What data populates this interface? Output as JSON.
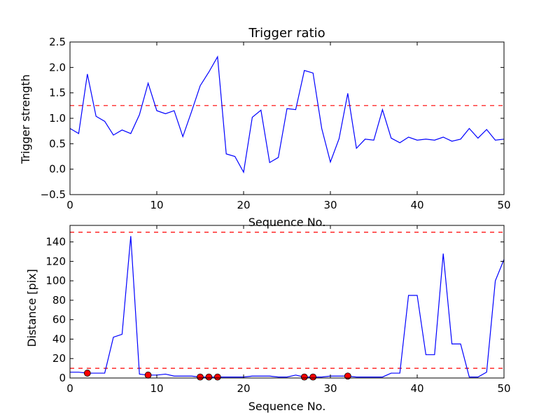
{
  "chart_data": [
    {
      "type": "line",
      "title": "Trigger ratio",
      "xlabel": "Sequence No.",
      "ylabel": "Trigger strength",
      "xlim": [
        0,
        50
      ],
      "ylim": [
        -0.5,
        2.5
      ],
      "xticks": [
        0,
        10,
        20,
        30,
        40,
        50
      ],
      "xtick_labels": [
        "0",
        "10",
        "20",
        "30",
        "40",
        "50"
      ],
      "yticks": [
        -0.5,
        0.0,
        0.5,
        1.0,
        1.5,
        2.0,
        2.5
      ],
      "ytick_labels": [
        "−0.5",
        "0.0",
        "0.5",
        "1.0",
        "1.5",
        "2.0",
        "2.5"
      ],
      "grid": false,
      "series": [
        {
          "color": "#0000ff",
          "x": [
            0,
            1,
            2,
            3,
            4,
            5,
            6,
            7,
            8,
            9,
            10,
            11,
            12,
            13,
            14,
            15,
            16,
            17,
            18,
            19,
            20,
            21,
            22,
            23,
            24,
            25,
            26,
            27,
            28,
            29,
            30,
            31,
            32,
            33,
            34,
            35,
            36,
            37,
            38,
            39,
            40,
            41,
            42,
            43,
            44,
            45,
            46,
            47,
            48,
            49,
            50
          ],
          "values": [
            0.8,
            0.7,
            1.87,
            1.04,
            0.94,
            0.67,
            0.77,
            0.7,
            1.07,
            1.69,
            1.15,
            1.09,
            1.15,
            0.64,
            1.13,
            1.64,
            1.91,
            2.21,
            0.3,
            0.25,
            -0.06,
            1.02,
            1.16,
            0.13,
            0.23,
            1.19,
            1.17,
            1.94,
            1.89,
            0.8,
            0.14,
            0.6,
            1.49,
            0.41,
            0.59,
            0.57,
            1.17,
            0.61,
            0.52,
            0.63,
            0.57,
            0.59,
            0.57,
            0.63,
            0.55,
            0.59,
            0.8,
            0.61,
            0.78,
            0.57,
            0.59
          ]
        }
      ],
      "hlines": [
        {
          "y": 1.25,
          "color": "#ff0000",
          "style": "dashed"
        }
      ]
    },
    {
      "type": "line",
      "title": "",
      "xlabel": "Sequence No.",
      "ylabel": "Distance [pix]",
      "xlim": [
        0,
        50
      ],
      "ylim": [
        0,
        157
      ],
      "xticks": [
        0,
        10,
        20,
        30,
        40,
        50
      ],
      "xtick_labels": [
        "0",
        "10",
        "20",
        "30",
        "40",
        "50"
      ],
      "yticks": [
        0,
        20,
        40,
        60,
        80,
        100,
        120,
        140
      ],
      "ytick_labels": [
        "0",
        "20",
        "40",
        "60",
        "80",
        "100",
        "120",
        "140"
      ],
      "grid": false,
      "series": [
        {
          "color": "#0000ff",
          "x": [
            0,
            1,
            2,
            3,
            4,
            5,
            6,
            7,
            8,
            9,
            10,
            11,
            12,
            13,
            14,
            15,
            16,
            17,
            18,
            19,
            20,
            21,
            22,
            23,
            24,
            25,
            26,
            27,
            28,
            29,
            30,
            31,
            32,
            33,
            34,
            35,
            36,
            37,
            38,
            39,
            40,
            41,
            42,
            43,
            44,
            45,
            46,
            47,
            48,
            49,
            50
          ],
          "values": [
            6,
            6,
            5,
            5,
            5,
            42,
            45,
            146,
            4,
            3,
            3,
            4,
            2,
            2,
            2,
            1,
            1,
            1,
            1,
            1,
            1,
            2,
            2,
            2,
            1,
            1,
            3,
            1,
            1,
            1,
            2,
            2,
            2,
            1,
            1,
            1,
            1,
            5,
            5,
            85,
            85,
            24,
            24,
            128,
            35,
            35,
            1,
            1,
            6,
            100,
            122
          ]
        },
        {
          "color": "#ff0000",
          "marker": "circle",
          "x": [
            2,
            9,
            15,
            16,
            17,
            27,
            28,
            32
          ],
          "values": [
            5,
            3,
            1,
            1,
            1,
            1,
            1,
            2
          ]
        }
      ],
      "hlines": [
        {
          "y": 150,
          "color": "#ff0000",
          "style": "dashed"
        },
        {
          "y": 10,
          "color": "#ff0000",
          "style": "dashed"
        }
      ]
    }
  ]
}
